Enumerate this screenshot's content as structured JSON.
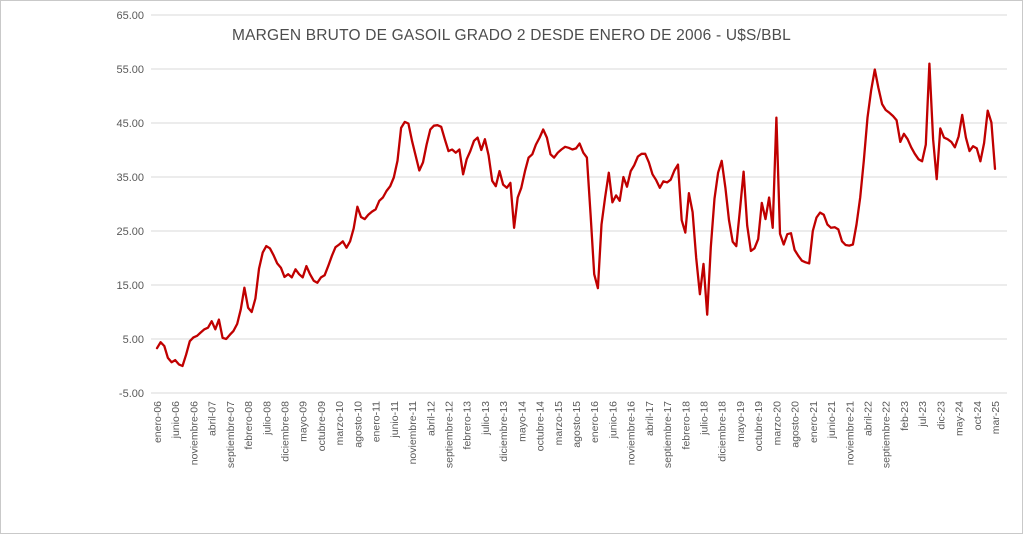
{
  "chart_data": {
    "type": "line",
    "title": "MARGEN BRUTO DE GASOIL GRADO 2 DESDE ENERO DE 2006 - U$S/BBL",
    "ylabel": "",
    "xlabel": "",
    "ylim": [
      -5,
      65
    ],
    "grid": "horizontal",
    "legend_position": "none",
    "y_tick_labels": [
      "65.00",
      "55.00",
      "45.00",
      "35.00",
      "25.00",
      "15.00",
      "5.00",
      "-5.00"
    ],
    "y_tick_values": [
      65,
      55,
      45,
      35,
      25,
      15,
      5,
      -5
    ],
    "x_tick_interval_months": 5,
    "x_tick_labels": [
      "enero-06",
      "junio-06",
      "noviembre-06",
      "abril-07",
      "septiembre-07",
      "febrero-08",
      "julio-08",
      "diciembre-08",
      "mayo-09",
      "octubre-09",
      "marzo-10",
      "agosto-10",
      "enero-11",
      "junio-11",
      "noviembre-11",
      "abril-12",
      "septiembre-12",
      "febrero-13",
      "julio-13",
      "diciembre-13",
      "mayo-14",
      "octubre-14",
      "marzo-15",
      "agosto-15",
      "enero-16",
      "junio-16",
      "noviembre-16",
      "abril-17",
      "septiembre-17",
      "febrero-18",
      "julio-18",
      "diciembre-18",
      "mayo-19",
      "octubre-19",
      "marzo-20",
      "agosto-20",
      "enero-21",
      "junio-21",
      "noviembre-21",
      "abril-22",
      "septiembre-22",
      "feb-23",
      "jul-23",
      "dic-23",
      "may-24",
      "oct-24",
      "mar-25"
    ],
    "series": [
      {
        "name": "Margen bruto gasoil grado 2 (U$S/BBL)",
        "color": "#C00000",
        "start_month": "enero-06",
        "end_month": "mar-25",
        "values": [
          3.3,
          4.4,
          3.7,
          1.5,
          0.7,
          1.1,
          0.3,
          0.0,
          2.1,
          4.6,
          5.3,
          5.6,
          6.2,
          6.8,
          7.1,
          8.3,
          6.8,
          8.6,
          5.2,
          5.0,
          5.8,
          6.5,
          7.8,
          10.5,
          14.5,
          10.8,
          10.0,
          12.5,
          18.0,
          21.0,
          22.2,
          21.8,
          20.5,
          19.0,
          18.2,
          16.5,
          17.0,
          16.4,
          17.9,
          17.0,
          16.4,
          18.5,
          17.0,
          15.8,
          15.4,
          16.4,
          16.8,
          18.5,
          20.4,
          22.0,
          22.5,
          23.1,
          21.9,
          23.1,
          25.5,
          29.5,
          27.6,
          27.2,
          28.0,
          28.6,
          29.0,
          30.6,
          31.2,
          32.4,
          33.3,
          34.9,
          38.0,
          44.1,
          45.2,
          44.9,
          41.7,
          38.9,
          36.2,
          37.7,
          41.0,
          43.8,
          44.5,
          44.6,
          44.3,
          42.0,
          39.8,
          40.1,
          39.5,
          40.1,
          35.5,
          38.3,
          39.8,
          41.7,
          42.3,
          40.0,
          42.0,
          39.0,
          34.3,
          33.3,
          36.1,
          33.6,
          33.0,
          33.9,
          25.6,
          31.2,
          33.0,
          36.1,
          38.6,
          39.2,
          41.0,
          42.3,
          43.8,
          42.3,
          39.2,
          38.6,
          39.5,
          40.1,
          40.6,
          40.4,
          40.1,
          40.3,
          41.2,
          39.5,
          38.6,
          28.0,
          17.0,
          14.4,
          26.2,
          31.2,
          35.8,
          30.3,
          31.6,
          30.6,
          35.0,
          33.2,
          36.1,
          37.2,
          38.8,
          39.3,
          39.3,
          37.7,
          35.5,
          34.4,
          33.0,
          34.2,
          34.0,
          34.5,
          36.2,
          37.3,
          27.0,
          24.7,
          32.0,
          28.5,
          20.0,
          13.3,
          18.9,
          9.5,
          22.0,
          31.0,
          35.8,
          38.0,
          33.0,
          27.0,
          23.0,
          22.2,
          29.0,
          36.0,
          26.0,
          21.3,
          21.8,
          23.5,
          30.2,
          27.2,
          31.2,
          25.6,
          46.0,
          24.5,
          22.5,
          24.4,
          24.6,
          21.5,
          20.4,
          19.5,
          19.2,
          19.0,
          25.0,
          27.5,
          28.4,
          28.0,
          26.2,
          25.6,
          25.7,
          25.3,
          23.1,
          22.4,
          22.3,
          22.5,
          26.2,
          31.2,
          38.0,
          46.0,
          51.0,
          54.9,
          51.5,
          48.5,
          47.4,
          46.9,
          46.3,
          45.5,
          41.5,
          43.0,
          42.0,
          40.5,
          39.3,
          38.3,
          37.9,
          41.0,
          56.0,
          42.0,
          34.6,
          44.0,
          42.3,
          42.0,
          41.5,
          40.5,
          42.5,
          46.5,
          42.3,
          39.8,
          40.7,
          40.3,
          37.9,
          41.3,
          47.3,
          45.1,
          36.5
        ]
      }
    ],
    "colors": {
      "line": "#C00000",
      "gridline": "#D9D9D9",
      "tick_label": "#595959",
      "title": "#4d4d4d",
      "background": "#ffffff"
    }
  }
}
